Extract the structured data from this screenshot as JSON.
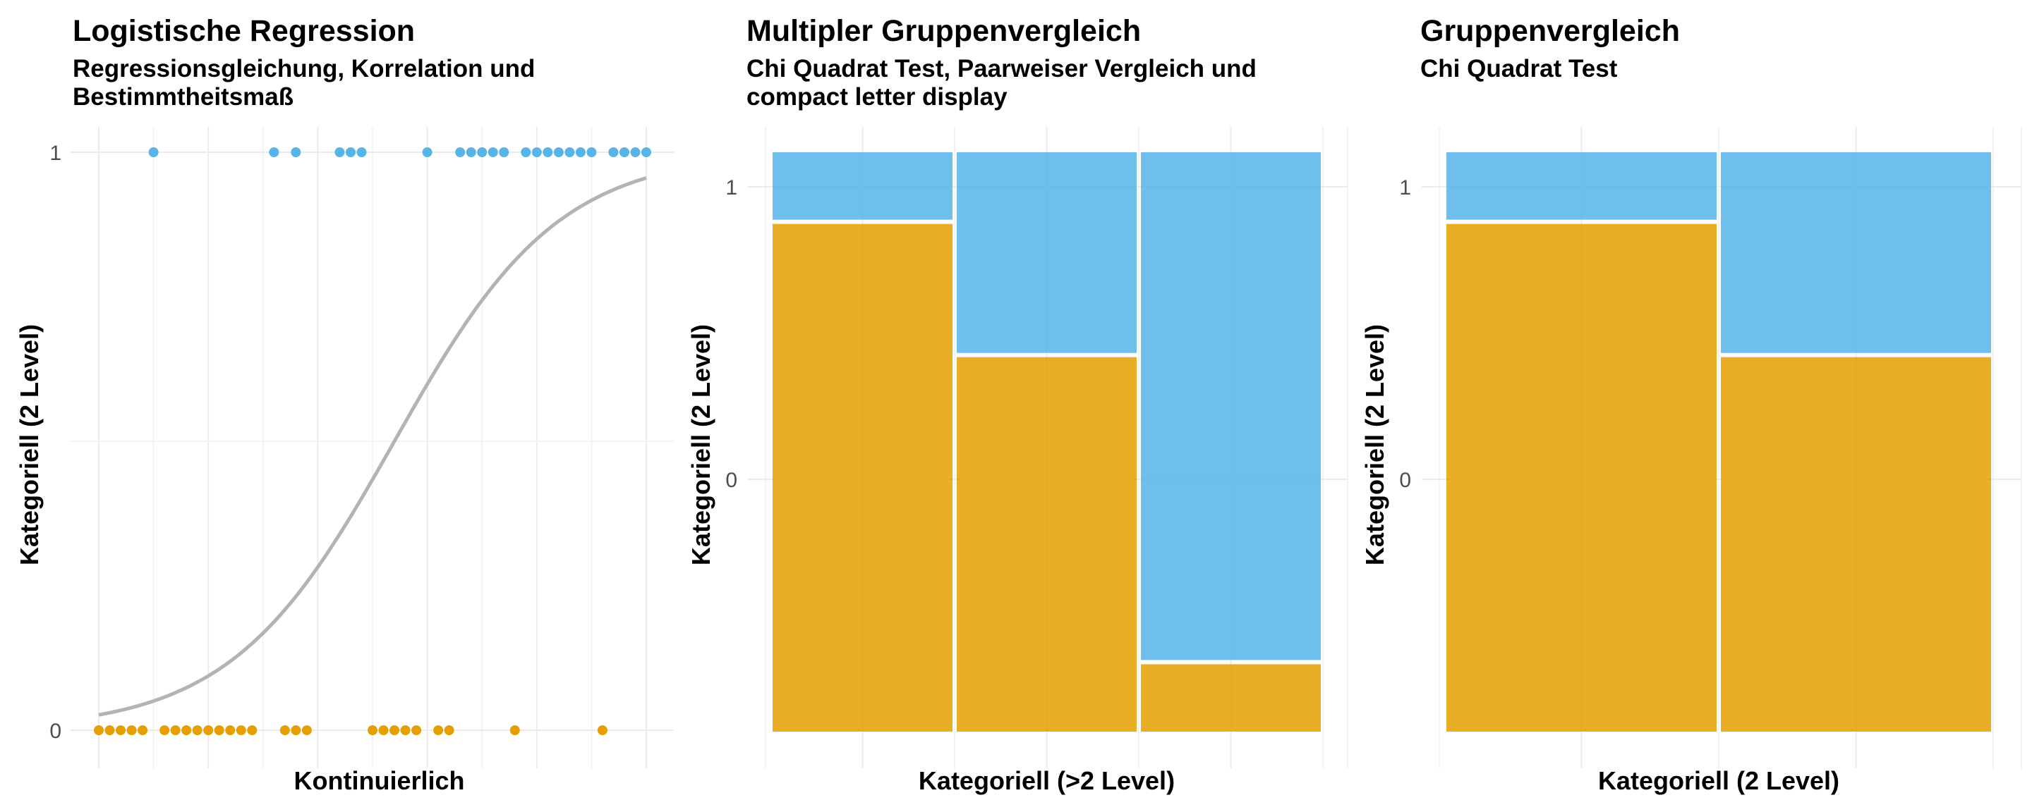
{
  "palette": {
    "zero": "#E69F00",
    "one": "#56B4E9",
    "curve": "#b3b3b3",
    "grid": "#ebebeb"
  },
  "panels": [
    {
      "title": "Logistische Regression",
      "subtitle": "Regressionsgleichung, Korrelation und Bestimmtheitsmaß"
    },
    {
      "title": "Multipler Gruppenvergleich",
      "subtitle": "Chi Quadrat Test, Paarweiser Vergleich und compact letter display"
    },
    {
      "title": "Gruppenvergleich",
      "subtitle": "Chi Quadrat Test"
    }
  ],
  "chart_data": [
    {
      "type": "scatter",
      "title": "Logistische Regression",
      "subtitle": "Regressionsgleichung, Korrelation und Bestimmtheitsmaß",
      "xlabel": "Kontinuierlich",
      "ylabel": "Kategoriell (2 Level)",
      "xlim": [
        0,
        100
      ],
      "ylim": [
        0,
        1
      ],
      "y_ticks": [
        "0",
        "1"
      ],
      "grid": true,
      "series": [
        {
          "name": "0",
          "y": 0,
          "x": [
            0,
            2,
            4,
            6,
            8,
            12,
            14,
            16,
            18,
            20,
            22,
            24,
            26,
            28,
            34,
            36,
            38,
            50,
            52,
            54,
            56,
            58,
            62,
            64,
            76,
            92
          ]
        },
        {
          "name": "1",
          "y": 1,
          "x": [
            10,
            32,
            36,
            44,
            46,
            48,
            60,
            66,
            68,
            70,
            72,
            74,
            78,
            80,
            82,
            84,
            86,
            88,
            90,
            94,
            96,
            98,
            100
          ]
        }
      ],
      "fit": {
        "type": "logistic",
        "midpoint": 54,
        "scale": 15
      }
    },
    {
      "type": "mosaic",
      "title": "Multipler Gruppenvergleich",
      "subtitle": "Chi Quadrat Test, Paarweiser Vergleich und compact letter display",
      "xlabel": "Kategoriell (>2 Level)",
      "ylabel": "Kategoriell (2 Level)",
      "y_ticks": [
        "0",
        "1"
      ],
      "groups": [
        {
          "share_0": 0.88,
          "share_1": 0.12
        },
        {
          "share_0": 0.65,
          "share_1": 0.35
        },
        {
          "share_0": 0.12,
          "share_1": 0.88
        }
      ]
    },
    {
      "type": "mosaic",
      "title": "Gruppenvergleich",
      "subtitle": "Chi Quadrat Test",
      "xlabel": "Kategoriell (2 Level)",
      "ylabel": "Kategoriell (2 Level)",
      "y_ticks": [
        "0",
        "1"
      ],
      "groups": [
        {
          "share_0": 0.88,
          "share_1": 0.12
        },
        {
          "share_0": 0.65,
          "share_1": 0.35
        }
      ]
    }
  ]
}
